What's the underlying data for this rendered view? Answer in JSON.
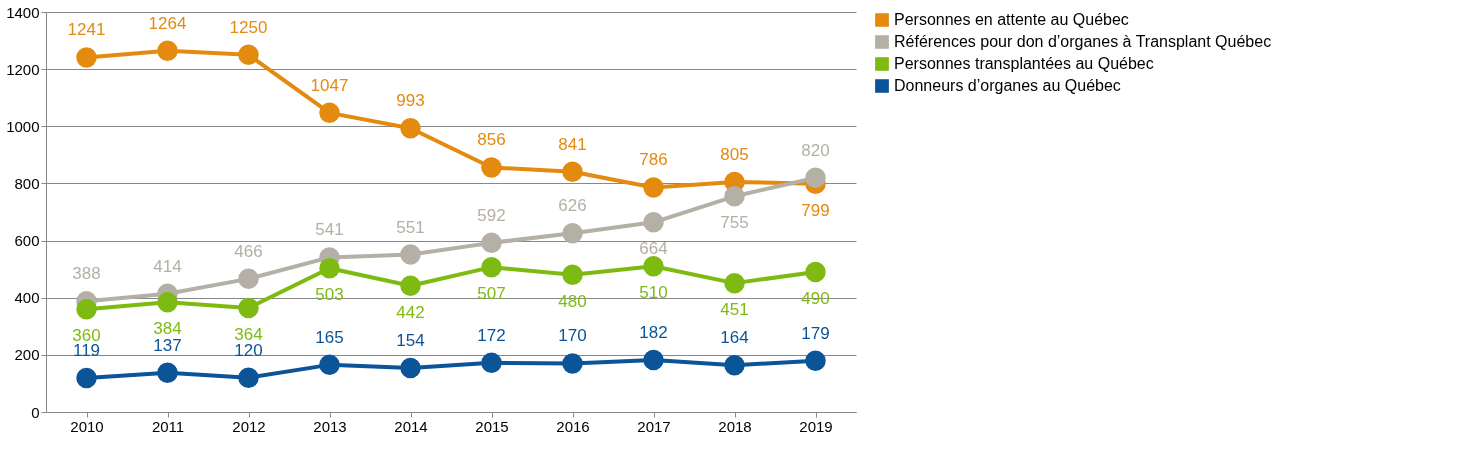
{
  "chart_data": {
    "type": "line",
    "categories": [
      "2010",
      "2011",
      "2012",
      "2013",
      "2014",
      "2015",
      "2016",
      "2017",
      "2018",
      "2019"
    ],
    "series": [
      {
        "name": "Personnes en attente au Québec",
        "color": "#e38a0f",
        "values": [
          1241,
          1264,
          1250,
          1047,
          993,
          856,
          841,
          786,
          805,
          799
        ]
      },
      {
        "name": "Références pour don d’organes à Transplant Québec",
        "color": "#b5b0a6",
        "values": [
          388,
          414,
          466,
          541,
          551,
          592,
          626,
          664,
          755,
          820
        ]
      },
      {
        "name": "Personnes transplantées au Québec",
        "color": "#7dbb12",
        "values": [
          360,
          384,
          364,
          503,
          442,
          507,
          480,
          510,
          451,
          490
        ]
      },
      {
        "name": "Donneurs d’organes au Québec",
        "color": "#0b5497",
        "values": [
          119,
          137,
          120,
          165,
          154,
          172,
          170,
          182,
          164,
          179
        ]
      }
    ],
    "ylim": [
      0,
      1400
    ],
    "yticks": [
      0,
      200,
      400,
      600,
      800,
      1000,
      1200,
      1400
    ],
    "grid": "y",
    "legend": "right",
    "marker": "circle",
    "line_style": "solid",
    "data_labels": true
  }
}
